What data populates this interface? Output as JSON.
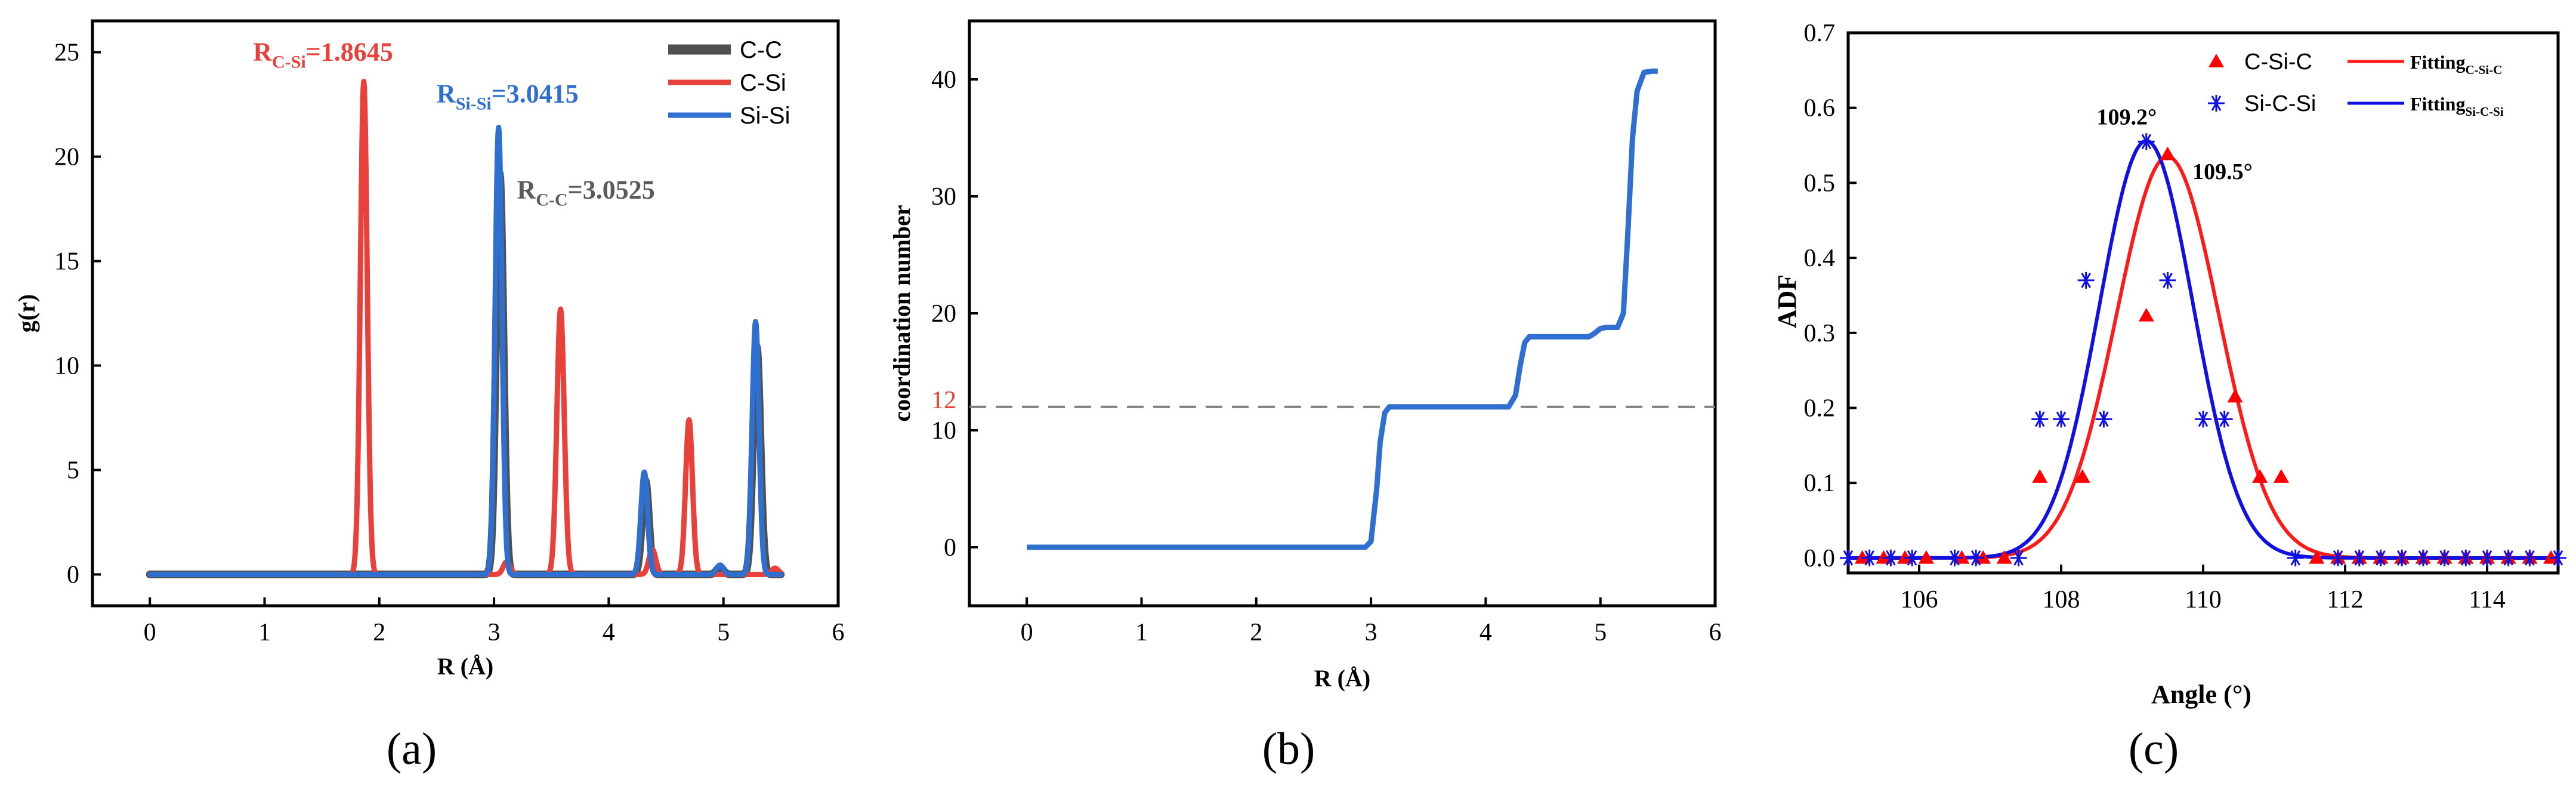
{
  "chart_data": [
    {
      "type": "line",
      "xlabel": "R (Å)",
      "ylabel": "g(r)",
      "caption": "(a)",
      "xlim": [
        -0.5,
        6
      ],
      "ylim": [
        -1.5,
        26.5
      ],
      "xticks": [
        0,
        1,
        2,
        3,
        4,
        5,
        6
      ],
      "yticks": [
        0,
        5,
        10,
        15,
        20,
        25
      ],
      "legend_position": "top-right",
      "series": [
        {
          "name": "C-C",
          "color": "#505050",
          "peaks": [
            {
              "x": 3.05,
              "h": 19.2,
              "w": 0.032
            },
            {
              "x": 4.32,
              "h": 4.5,
              "w": 0.03
            },
            {
              "x": 4.97,
              "h": 0.35,
              "w": 0.03
            },
            {
              "x": 5.29,
              "h": 10.9,
              "w": 0.032
            }
          ]
        },
        {
          "name": "C-Si",
          "color": "#e8403a",
          "peaks": [
            {
              "x": 1.865,
              "h": 23.6,
              "w": 0.03
            },
            {
              "x": 3.11,
              "h": 0.6,
              "w": 0.03
            },
            {
              "x": 3.58,
              "h": 12.7,
              "w": 0.032
            },
            {
              "x": 4.38,
              "h": 1.2,
              "w": 0.03
            },
            {
              "x": 4.7,
              "h": 7.4,
              "w": 0.03
            },
            {
              "x": 5.45,
              "h": 0.3,
              "w": 0.03
            }
          ]
        },
        {
          "name": "Si-Si",
          "color": "#2e6fd0",
          "peaks": [
            {
              "x": 3.04,
              "h": 21.4,
              "w": 0.03
            },
            {
              "x": 4.31,
              "h": 4.9,
              "w": 0.03
            },
            {
              "x": 4.97,
              "h": 0.45,
              "w": 0.03
            },
            {
              "x": 5.28,
              "h": 12.1,
              "w": 0.03
            }
          ]
        }
      ],
      "annotations": [
        {
          "main": "R",
          "sub": "C-Si",
          "value": "=1.8645",
          "color": "#e8403a",
          "x": 0.9,
          "y": 24.6
        },
        {
          "main": "R",
          "sub": "Si-Si",
          "value": "=3.0415",
          "color": "#2e6fd0",
          "x": 2.5,
          "y": 22.6
        },
        {
          "main": "R",
          "sub": "C-C",
          "value": "=3.0525",
          "color": "#5a5a5a",
          "x": 3.2,
          "y": 18.0
        }
      ]
    },
    {
      "type": "line",
      "xlabel": "R (Å)",
      "ylabel": "coordination number",
      "caption": "(b)",
      "xlim": [
        -0.5,
        6
      ],
      "ylim": [
        -5,
        45
      ],
      "xticks": [
        0,
        1,
        2,
        3,
        4,
        5,
        6
      ],
      "yticks": [
        0,
        10,
        20,
        30,
        40
      ],
      "reference_line": {
        "y": 12,
        "label": "12",
        "label_color": "#e8403a",
        "line_color": "#808080"
      },
      "series": [
        {
          "color": "#2e6fd0",
          "x": [
            0,
            2.95,
            3.0,
            3.05,
            3.08,
            3.12,
            3.16,
            3.25,
            4.2,
            4.26,
            4.3,
            4.34,
            4.38,
            4.45,
            4.9,
            4.95,
            5.0,
            5.05,
            5.15,
            5.2,
            5.24,
            5.28,
            5.32,
            5.38,
            5.45,
            5.5
          ],
          "y": [
            0,
            0,
            0.5,
            5,
            9,
            11.5,
            12,
            12,
            12,
            13,
            15.5,
            17.5,
            18,
            18,
            18,
            18.3,
            18.7,
            18.8,
            18.8,
            20,
            27,
            35,
            39,
            40.6,
            40.7,
            40.7
          ]
        }
      ]
    },
    {
      "type": "scatter",
      "xlabel": "Angle (°)",
      "ylabel": "ADF",
      "caption": "(c)",
      "xlim": [
        105,
        115
      ],
      "ylim": [
        -0.02,
        0.7
      ],
      "xticks": [
        106,
        108,
        110,
        112,
        114
      ],
      "yticks": [
        0.0,
        0.1,
        0.2,
        0.3,
        0.4,
        0.5,
        0.6,
        0.7
      ],
      "legend_position": "top-right",
      "series": [
        {
          "name": "C-Si-C",
          "marker": "triangle",
          "color": "#ff0000",
          "x": [
            105.2,
            105.5,
            105.8,
            106.1,
            106.6,
            106.9,
            107.2,
            107.7,
            108.3,
            109.2,
            109.5,
            110.45,
            110.8,
            111.1,
            111.6,
            111.9,
            112.2,
            112.5,
            112.8,
            113.1,
            113.4,
            113.7,
            114.0,
            114.3,
            114.6,
            114.9
          ],
          "y": [
            0,
            0,
            0,
            0,
            0,
            0,
            0,
            0.108,
            0.108,
            0.323,
            0.538,
            0.215,
            0.108,
            0.108,
            0,
            0,
            0,
            0,
            0,
            0,
            0,
            0,
            0,
            0,
            0,
            0
          ]
        },
        {
          "name": "Si-C-Si",
          "marker": "asterisk",
          "color": "#1010e0",
          "x": [
            105.0,
            105.3,
            105.6,
            105.9,
            106.5,
            106.8,
            107.4,
            107.7,
            108.0,
            108.35,
            108.6,
            109.2,
            109.5,
            110.0,
            110.3,
            111.3,
            111.9,
            112.2,
            112.5,
            112.8,
            113.1,
            113.4,
            113.7,
            114.0,
            114.3,
            114.6,
            115.0
          ],
          "y": [
            0,
            0,
            0,
            0,
            0,
            0,
            0,
            0.185,
            0.185,
            0.37,
            0.185,
            0.555,
            0.37,
            0.185,
            0.185,
            0,
            0,
            0,
            0,
            0,
            0,
            0,
            0,
            0,
            0,
            0,
            0
          ]
        },
        {
          "name": "Fitting",
          "sub": "C-Si-C",
          "line": true,
          "color": "#ff1a1a",
          "gauss": {
            "mu": 109.5,
            "sigma": 0.72,
            "a": 0.535
          }
        },
        {
          "name": "Fitting",
          "sub": "Si-C-Si",
          "line": true,
          "color": "#1010e0",
          "gauss": {
            "mu": 109.2,
            "sigma": 0.66,
            "a": 0.556
          }
        }
      ],
      "annotations": [
        {
          "text": "109.2°",
          "x": 108.5,
          "y": 0.578
        },
        {
          "text": "109.5°",
          "x": 109.85,
          "y": 0.505
        }
      ]
    }
  ]
}
